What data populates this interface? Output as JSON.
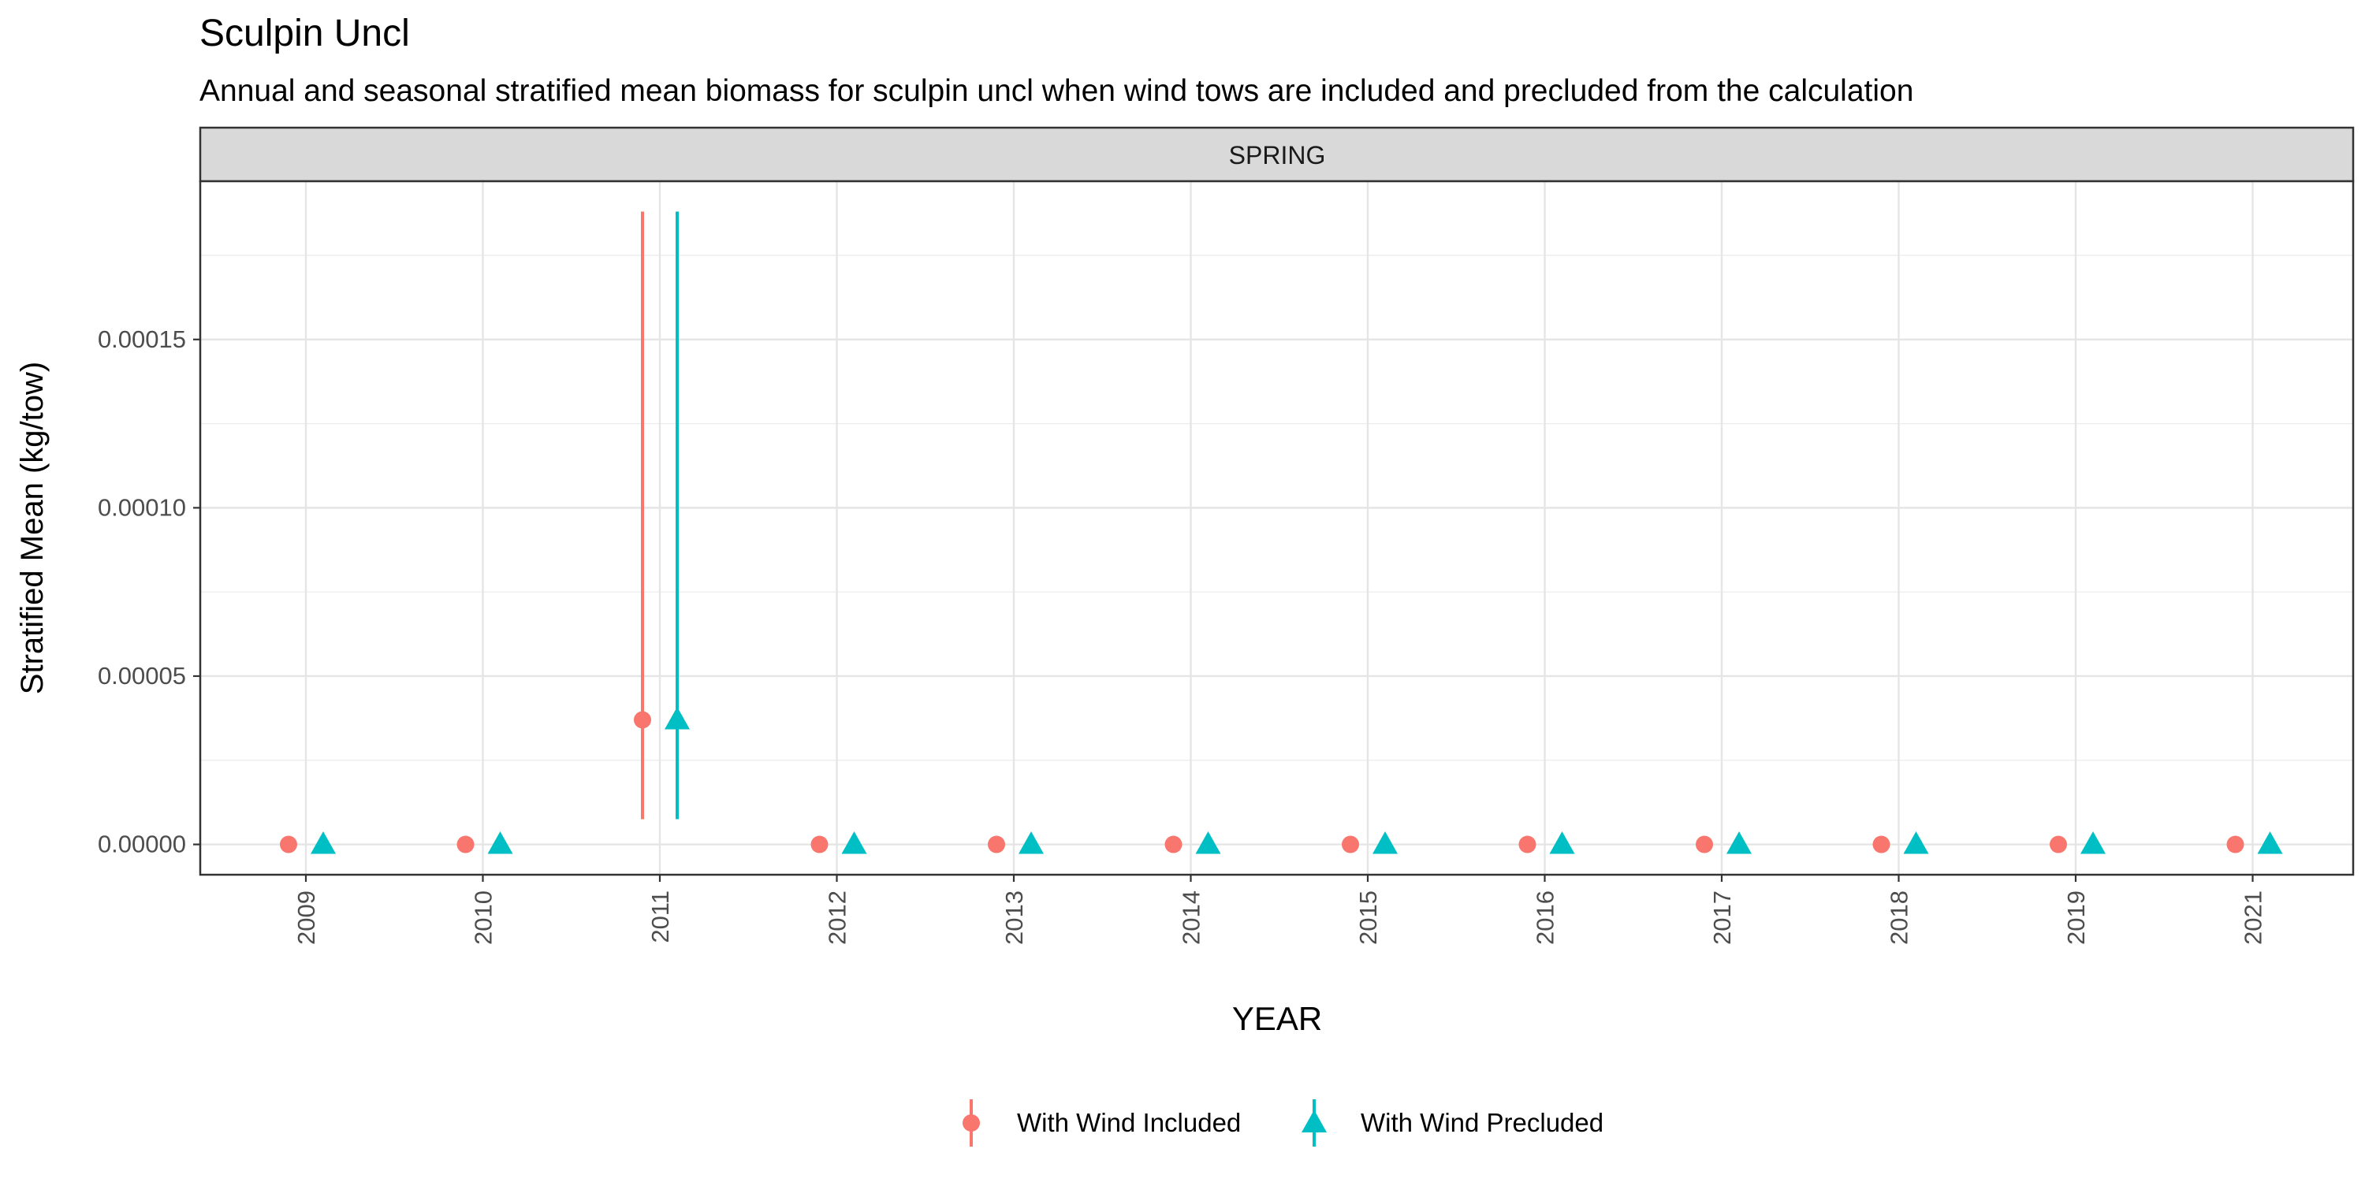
{
  "chart_data": {
    "type": "scatter",
    "title": "Sculpin Uncl",
    "subtitle": "Annual and seasonal stratified mean biomass for sculpin uncl when wind tows are included and precluded from the calculation",
    "facet_label": "SPRING",
    "xlabel": "YEAR",
    "ylabel": "Stratified Mean (kg/tow)",
    "x": [
      2009,
      2010,
      2011,
      2012,
      2013,
      2014,
      2015,
      2016,
      2017,
      2018,
      2019,
      2021
    ],
    "x_tick_labels": [
      "2009",
      "2010",
      "2011",
      "2012",
      "2013",
      "2014",
      "2015",
      "2016",
      "2017",
      "2018",
      "2019",
      "2021"
    ],
    "y_ticks": [
      0,
      5e-05,
      0.0001,
      0.00015
    ],
    "y_tick_labels": [
      "0.00000",
      "0.00005",
      "0.00010",
      "0.00015"
    ],
    "ylim": [
      -9e-06,
      0.000197
    ],
    "grid": true,
    "legend_position": "bottom",
    "series": [
      {
        "name": "With Wind Included",
        "color": "#F8766D",
        "marker": "circle",
        "values": [
          0,
          0,
          3.7e-05,
          0,
          0,
          0,
          0,
          0,
          0,
          0,
          0,
          0
        ],
        "lower": [
          0,
          0,
          7.5e-06,
          0,
          0,
          0,
          0,
          0,
          0,
          0,
          0,
          0
        ],
        "upper": [
          0,
          0,
          0.000188,
          0,
          0,
          0,
          0,
          0,
          0,
          0,
          0,
          0
        ]
      },
      {
        "name": "With Wind Precluded",
        "color": "#00BFC4",
        "marker": "triangle",
        "values": [
          0,
          0,
          3.7e-05,
          0,
          0,
          0,
          0,
          0,
          0,
          0,
          0,
          0
        ],
        "lower": [
          0,
          0,
          7.5e-06,
          0,
          0,
          0,
          0,
          0,
          0,
          0,
          0,
          0
        ],
        "upper": [
          0,
          0,
          0.000188,
          0,
          0,
          0,
          0,
          0,
          0,
          0,
          0,
          0
        ]
      }
    ]
  }
}
